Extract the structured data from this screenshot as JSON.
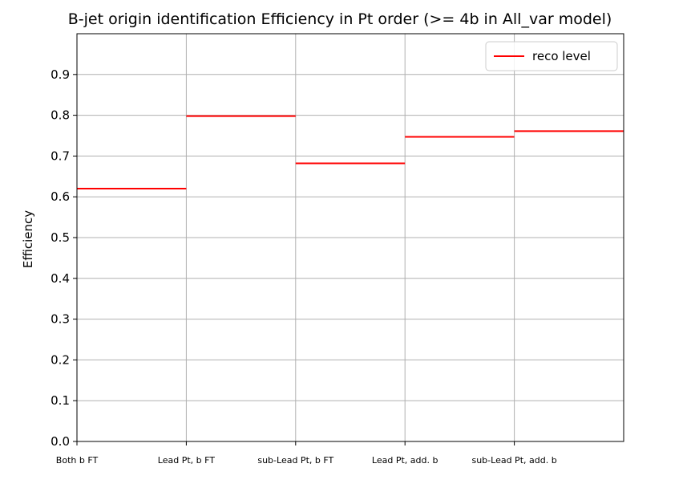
{
  "chart_data": {
    "type": "step",
    "title": "B-jet origin identification Efficiency in Pt order (>= 4b in All_var model)",
    "xlabel": "",
    "ylabel": "Efficiency",
    "categories": [
      "Both b FT",
      "Lead Pt, b FT",
      "sub-Lead Pt, b FT",
      "Lead Pt, add. b",
      "sub-Lead Pt, add. b"
    ],
    "series": [
      {
        "name": "reco level",
        "color": "#ff0000",
        "values": [
          0.62,
          0.798,
          0.682,
          0.747,
          0.761
        ]
      }
    ],
    "ylim": [
      0.0,
      1.0
    ],
    "yticks": [
      "0.0",
      "0.1",
      "0.2",
      "0.3",
      "0.4",
      "0.5",
      "0.6",
      "0.7",
      "0.8",
      "0.9"
    ],
    "grid": true,
    "legend_position": "top-right"
  }
}
